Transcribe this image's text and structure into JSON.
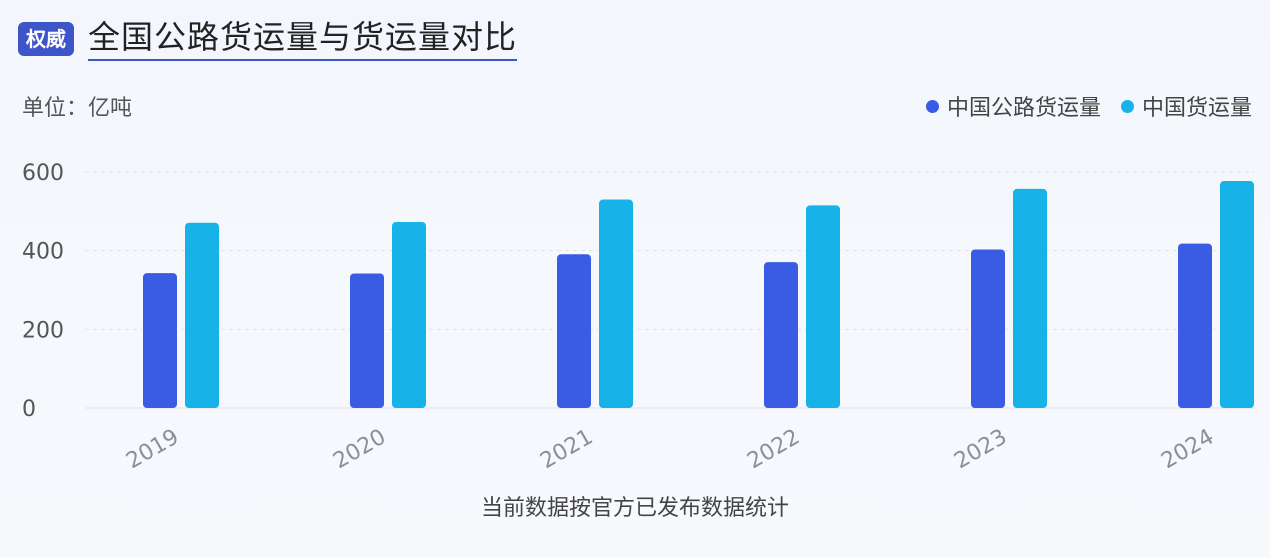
{
  "header": {
    "badge": "权威",
    "title": "全国公路货运量与货运量对比"
  },
  "unit_label": "单位：亿吨",
  "footnote": "当前数据按官方已发布数据统计",
  "colors": {
    "road": "#3a5be3",
    "total": "#17b3e8",
    "badge": "#3d55c9",
    "grid": "#dfe3ea"
  },
  "chart_data": {
    "type": "bar",
    "title": "全国公路货运量与货运量对比",
    "ylabel": "单位：亿吨",
    "categories": [
      "2019",
      "2020",
      "2021",
      "2022",
      "2023",
      "2024"
    ],
    "series": [
      {
        "name": "中国公路货运量",
        "values": [
          343,
          342,
          391,
          371,
          403,
          418
        ]
      },
      {
        "name": "中国货运量",
        "values": [
          471,
          473,
          530,
          515,
          557,
          577
        ]
      }
    ],
    "ylim": [
      0,
      600
    ],
    "yticks": [
      "0",
      "200",
      "400",
      "600"
    ],
    "grid": true,
    "legend_position": "top-right"
  }
}
